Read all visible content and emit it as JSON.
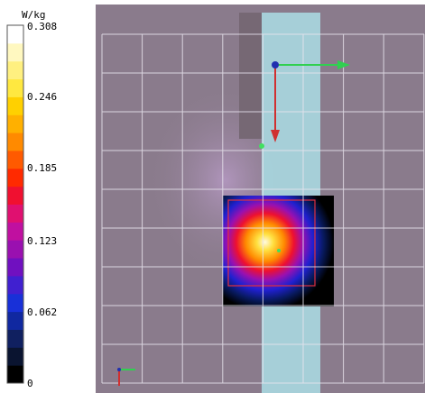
{
  "colorbar": {
    "unit": "W/kg",
    "ticks": [
      "0.308",
      "0.246",
      "0.185",
      "0.123",
      "0.062",
      "0"
    ]
  }
}
